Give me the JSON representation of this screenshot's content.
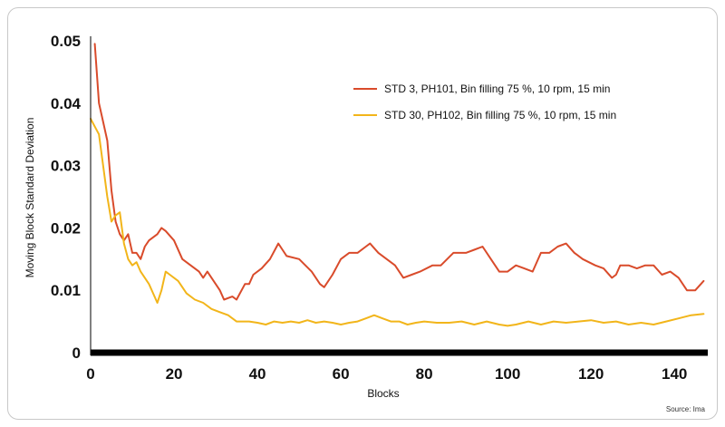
{
  "chart_data": {
    "type": "line",
    "xlabel": "Blocks",
    "ylabel": "Moving Block Standard Deviation",
    "source": "Source: Ima",
    "xlim": [
      0,
      148
    ],
    "ylim": [
      0,
      0.05
    ],
    "x_ticks": [
      0,
      20,
      40,
      60,
      80,
      100,
      120,
      140
    ],
    "y_ticks": [
      0,
      0.01,
      0.02,
      0.03,
      0.04,
      0.05
    ],
    "y_tick_labels": [
      "0",
      "0.01",
      "0.02",
      "0.03",
      "0.04",
      "0.05"
    ],
    "legend_position": "top-right",
    "series": [
      {
        "name": "STD 3, PH101, Bin filling 75 %, 10 rpm, 15 min",
        "color": "#d94b2b",
        "points": [
          [
            1,
            0.0495
          ],
          [
            2,
            0.04
          ],
          [
            3,
            0.037
          ],
          [
            4,
            0.034
          ],
          [
            5,
            0.026
          ],
          [
            6,
            0.021
          ],
          [
            7,
            0.019
          ],
          [
            8,
            0.018
          ],
          [
            9,
            0.019
          ],
          [
            10,
            0.016
          ],
          [
            11,
            0.016
          ],
          [
            12,
            0.015
          ],
          [
            13,
            0.017
          ],
          [
            14,
            0.018
          ],
          [
            16,
            0.019
          ],
          [
            17,
            0.02
          ],
          [
            18,
            0.0195
          ],
          [
            20,
            0.018
          ],
          [
            22,
            0.015
          ],
          [
            24,
            0.014
          ],
          [
            26,
            0.013
          ],
          [
            27,
            0.012
          ],
          [
            28,
            0.013
          ],
          [
            30,
            0.011
          ],
          [
            31,
            0.01
          ],
          [
            32,
            0.0085
          ],
          [
            34,
            0.009
          ],
          [
            35,
            0.0085
          ],
          [
            37,
            0.011
          ],
          [
            38,
            0.011
          ],
          [
            39,
            0.0125
          ],
          [
            41,
            0.0135
          ],
          [
            43,
            0.015
          ],
          [
            45,
            0.0175
          ],
          [
            46,
            0.0165
          ],
          [
            47,
            0.0155
          ],
          [
            50,
            0.015
          ],
          [
            53,
            0.013
          ],
          [
            55,
            0.011
          ],
          [
            56,
            0.0105
          ],
          [
            58,
            0.0125
          ],
          [
            60,
            0.015
          ],
          [
            62,
            0.016
          ],
          [
            64,
            0.016
          ],
          [
            66,
            0.017
          ],
          [
            67,
            0.0175
          ],
          [
            69,
            0.016
          ],
          [
            71,
            0.015
          ],
          [
            73,
            0.014
          ],
          [
            75,
            0.012
          ],
          [
            77,
            0.0125
          ],
          [
            79,
            0.013
          ],
          [
            82,
            0.014
          ],
          [
            84,
            0.014
          ],
          [
            87,
            0.016
          ],
          [
            90,
            0.016
          ],
          [
            92,
            0.0165
          ],
          [
            94,
            0.017
          ],
          [
            96,
            0.015
          ],
          [
            98,
            0.013
          ],
          [
            100,
            0.013
          ],
          [
            102,
            0.014
          ],
          [
            104,
            0.0135
          ],
          [
            106,
            0.013
          ],
          [
            108,
            0.016
          ],
          [
            110,
            0.016
          ],
          [
            112,
            0.017
          ],
          [
            114,
            0.0175
          ],
          [
            116,
            0.016
          ],
          [
            118,
            0.015
          ],
          [
            121,
            0.014
          ],
          [
            123,
            0.0135
          ],
          [
            125,
            0.012
          ],
          [
            126,
            0.0125
          ],
          [
            127,
            0.014
          ],
          [
            129,
            0.014
          ],
          [
            131,
            0.0135
          ],
          [
            133,
            0.014
          ],
          [
            135,
            0.014
          ],
          [
            137,
            0.0125
          ],
          [
            139,
            0.013
          ],
          [
            141,
            0.012
          ],
          [
            143,
            0.01
          ],
          [
            145,
            0.01
          ],
          [
            147,
            0.0115
          ]
        ]
      },
      {
        "name": "STD 30, PH102, Bin filling 75 %, 10 rpm, 15 min",
        "color": "#f2b51a",
        "points": [
          [
            0,
            0.0375
          ],
          [
            2,
            0.035
          ],
          [
            3,
            0.03
          ],
          [
            4,
            0.025
          ],
          [
            5,
            0.021
          ],
          [
            6,
            0.022
          ],
          [
            7,
            0.0225
          ],
          [
            8,
            0.0175
          ],
          [
            9,
            0.015
          ],
          [
            10,
            0.014
          ],
          [
            11,
            0.0145
          ],
          [
            12,
            0.013
          ],
          [
            13,
            0.012
          ],
          [
            14,
            0.011
          ],
          [
            15,
            0.0095
          ],
          [
            16,
            0.008
          ],
          [
            17,
            0.01
          ],
          [
            18,
            0.013
          ],
          [
            19,
            0.0125
          ],
          [
            21,
            0.0115
          ],
          [
            23,
            0.0095
          ],
          [
            25,
            0.0085
          ],
          [
            27,
            0.008
          ],
          [
            29,
            0.007
          ],
          [
            31,
            0.0065
          ],
          [
            33,
            0.006
          ],
          [
            35,
            0.005
          ],
          [
            38,
            0.005
          ],
          [
            40,
            0.0048
          ],
          [
            42,
            0.0045
          ],
          [
            44,
            0.005
          ],
          [
            46,
            0.0048
          ],
          [
            48,
            0.005
          ],
          [
            50,
            0.0048
          ],
          [
            52,
            0.0052
          ],
          [
            54,
            0.0048
          ],
          [
            56,
            0.005
          ],
          [
            58,
            0.0048
          ],
          [
            60,
            0.0045
          ],
          [
            62,
            0.0048
          ],
          [
            64,
            0.005
          ],
          [
            66,
            0.0055
          ],
          [
            68,
            0.006
          ],
          [
            70,
            0.0055
          ],
          [
            72,
            0.005
          ],
          [
            74,
            0.005
          ],
          [
            76,
            0.0045
          ],
          [
            78,
            0.0048
          ],
          [
            80,
            0.005
          ],
          [
            83,
            0.0048
          ],
          [
            86,
            0.0048
          ],
          [
            89,
            0.005
          ],
          [
            92,
            0.0045
          ],
          [
            95,
            0.005
          ],
          [
            98,
            0.0045
          ],
          [
            100,
            0.0043
          ],
          [
            102,
            0.0045
          ],
          [
            105,
            0.005
          ],
          [
            108,
            0.0045
          ],
          [
            111,
            0.005
          ],
          [
            114,
            0.0048
          ],
          [
            117,
            0.005
          ],
          [
            120,
            0.0052
          ],
          [
            123,
            0.0048
          ],
          [
            126,
            0.005
          ],
          [
            129,
            0.0045
          ],
          [
            132,
            0.0048
          ],
          [
            135,
            0.0045
          ],
          [
            138,
            0.005
          ],
          [
            141,
            0.0055
          ],
          [
            144,
            0.006
          ],
          [
            147,
            0.0062
          ]
        ]
      }
    ]
  }
}
